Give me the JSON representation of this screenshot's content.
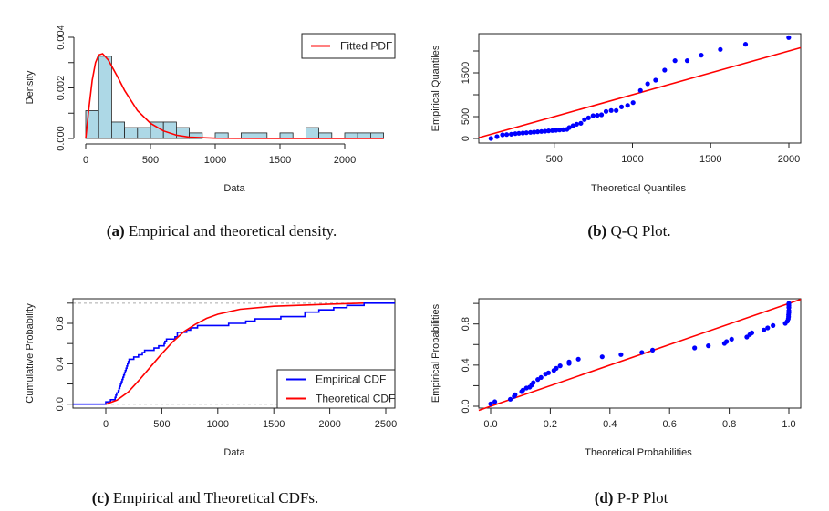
{
  "chart_data": [
    {
      "id": "a",
      "type": "bar",
      "caption_label": "(a)",
      "caption": " Empirical and theoretical density.",
      "xlabel": "Data",
      "ylabel": "Density",
      "xlim": [
        0,
        2300
      ],
      "ylim": [
        0,
        0.004
      ],
      "xticks": [
        0,
        500,
        1000,
        1500,
        2000
      ],
      "xtick_labels": [
        "0",
        "500",
        "1000",
        "1500",
        "2000"
      ],
      "yticks": [
        0,
        0.001,
        0.002,
        0.003,
        0.004
      ],
      "ytick_labels": [
        "0.000",
        "",
        "0.002",
        "",
        "0.004"
      ],
      "bin_width": 100,
      "bin_starts": [
        0,
        100,
        200,
        300,
        400,
        500,
        600,
        700,
        800,
        900,
        1000,
        1100,
        1200,
        1300,
        1400,
        1500,
        1600,
        1700,
        1800,
        1900,
        2000,
        2100,
        2200
      ],
      "values": [
        0.0011,
        0.00325,
        0.00065,
        0.00043,
        0.00043,
        0.00065,
        0.00065,
        0.00043,
        0.00022,
        0,
        0.00022,
        0,
        0.00022,
        0.00022,
        0,
        0.00022,
        0,
        0.00043,
        0.00022,
        0,
        0.00022,
        0.00022,
        0.00022
      ],
      "bar_color": "#add8e6",
      "legend": {
        "position": "top-right",
        "entries": [
          {
            "label": "Fitted PDF",
            "color": "#ff0000"
          }
        ]
      },
      "fitted_pdf": {
        "x": [
          0,
          25,
          50,
          75,
          100,
          130,
          175,
          250,
          300,
          400,
          500,
          600,
          700,
          800,
          1000,
          1500,
          2300
        ],
        "y": [
          0,
          0.0012,
          0.0023,
          0.003,
          0.0033,
          0.00335,
          0.0031,
          0.0024,
          0.0019,
          0.0011,
          0.0006,
          0.0003,
          0.00013,
          5e-05,
          1e-05,
          0,
          0
        ]
      }
    },
    {
      "id": "b",
      "type": "scatter",
      "caption_label": "(b)",
      "caption": " Q-Q Plot.",
      "xlabel": "Theoretical Quantiles",
      "ylabel": "Empirical Quantiles",
      "xlim": [
        0,
        2075
      ],
      "ylim": [
        -100,
        2400
      ],
      "xticks": [
        500,
        1000,
        1500,
        2000
      ],
      "xtick_labels": [
        "500",
        "1000",
        "1500",
        "2000"
      ],
      "yticks": [
        0,
        500,
        1000,
        1500,
        2000
      ],
      "ytick_labels": [
        "0",
        "500",
        "",
        "1500",
        ""
      ],
      "point_color": "#0000ff",
      "line_color": "#ff0000",
      "reference_line": "y = x",
      "x": [
        95,
        134,
        169,
        196,
        225,
        251,
        274,
        299,
        322,
        348,
        371,
        394,
        418,
        441,
        464,
        488,
        511,
        534,
        557,
        581,
        596,
        620,
        643,
        670,
        693,
        719,
        748,
        775,
        802,
        831,
        864,
        896,
        930,
        969,
        1004,
        1051,
        1097,
        1148,
        1206,
        1272,
        1350,
        1440,
        1562,
        1723,
        1999
      ],
      "y": [
        0,
        42,
        83,
        90,
        97,
        111,
        118,
        125,
        132,
        139,
        146,
        153,
        160,
        167,
        174,
        181,
        188,
        194,
        201,
        208,
        250,
        292,
        326,
        347,
        431,
        472,
        521,
        528,
        542,
        618,
        639,
        639,
        722,
        757,
        819,
        1097,
        1250,
        1333,
        1563,
        1778,
        1778,
        1903,
        2035,
        2153,
        2306
      ]
    },
    {
      "id": "c",
      "type": "line",
      "caption_label": "(c)",
      "caption": " Empirical and Theoretical CDFs.",
      "xlabel": "Data",
      "ylabel": "Cumulative Probability",
      "xlim": [
        -293,
        2581
      ],
      "ylim": [
        -0.04,
        1.04
      ],
      "xticks": [
        0,
        500,
        1000,
        1500,
        2000,
        2500
      ],
      "xtick_labels": [
        "0",
        "500",
        "1000",
        "1500",
        "2000",
        "2500"
      ],
      "yticks": [
        0,
        0.2,
        0.4,
        0.6,
        0.8,
        1.0
      ],
      "ytick_labels": [
        "0.0",
        "",
        "0.4",
        "",
        "0.8",
        ""
      ],
      "legend": {
        "position": "bottom-right",
        "entries": [
          {
            "label": "Empirical CDF",
            "color": "#0000ff"
          },
          {
            "label": "Theoretical CDF",
            "color": "#ff0000"
          }
        ]
      },
      "empirical_steps": [
        0,
        42,
        83,
        90,
        97,
        111,
        118,
        125,
        132,
        139,
        146,
        153,
        160,
        167,
        174,
        181,
        188,
        194,
        201,
        208,
        250,
        292,
        326,
        347,
        431,
        472,
        521,
        528,
        542,
        618,
        639,
        639,
        722,
        757,
        819,
        1097,
        1250,
        1333,
        1563,
        1778,
        1778,
        1903,
        2035,
        2153,
        2306
      ],
      "theoretical": {
        "x": [
          0,
          100,
          200,
          300,
          400,
          500,
          600,
          700,
          800,
          900,
          1000,
          1200,
          1500,
          2000,
          2300
        ],
        "y": [
          0,
          0.04,
          0.12,
          0.24,
          0.37,
          0.5,
          0.62,
          0.72,
          0.79,
          0.85,
          0.89,
          0.94,
          0.97,
          0.99,
          1.0
        ]
      }
    },
    {
      "id": "d",
      "type": "scatter",
      "caption_label": "(d)",
      "caption": " P-P Plot",
      "xlabel": "Theoretical Probabilities",
      "ylabel": "Empirical Probabilities",
      "xlim": [
        -0.04,
        1.04
      ],
      "ylim": [
        -0.04,
        1.04
      ],
      "xticks": [
        0,
        0.2,
        0.4,
        0.6,
        0.8,
        1.0
      ],
      "xtick_labels": [
        "0.0",
        "0.2",
        "0.4",
        "0.6",
        "0.8",
        "1.0"
      ],
      "yticks": [
        0,
        0.2,
        0.4,
        0.6,
        0.8,
        1.0
      ],
      "ytick_labels": [
        "0.0",
        "",
        "0.4",
        "",
        "0.8",
        ""
      ],
      "point_color": "#0000ff",
      "line_color": "#ff0000",
      "reference_line": "y = x",
      "x": [
        0,
        0.014,
        0.066,
        0.079,
        0.082,
        0.104,
        0.108,
        0.12,
        0.131,
        0.138,
        0.143,
        0.158,
        0.169,
        0.184,
        0.194,
        0.212,
        0.22,
        0.233,
        0.263,
        0.263,
        0.294,
        0.374,
        0.437,
        0.507,
        0.543,
        0.684,
        0.73,
        0.784,
        0.791,
        0.808,
        0.859,
        0.869,
        0.876,
        0.916,
        0.929,
        0.947,
        0.988,
        0.995,
        0.998,
        0.999,
        0.999,
        1.0,
        1.0,
        1.0,
        1.0,
        1.0
      ],
      "y": [
        0.024,
        0.044,
        0.068,
        0.097,
        0.112,
        0.142,
        0.156,
        0.177,
        0.186,
        0.207,
        0.23,
        0.26,
        0.28,
        0.313,
        0.325,
        0.348,
        0.369,
        0.393,
        0.416,
        0.431,
        0.458,
        0.481,
        0.502,
        0.523,
        0.546,
        0.567,
        0.588,
        0.611,
        0.629,
        0.652,
        0.673,
        0.697,
        0.714,
        0.741,
        0.762,
        0.785,
        0.806,
        0.827,
        0.85,
        0.87,
        0.89,
        0.91,
        0.93,
        0.96,
        0.98,
        1.0
      ]
    }
  ]
}
